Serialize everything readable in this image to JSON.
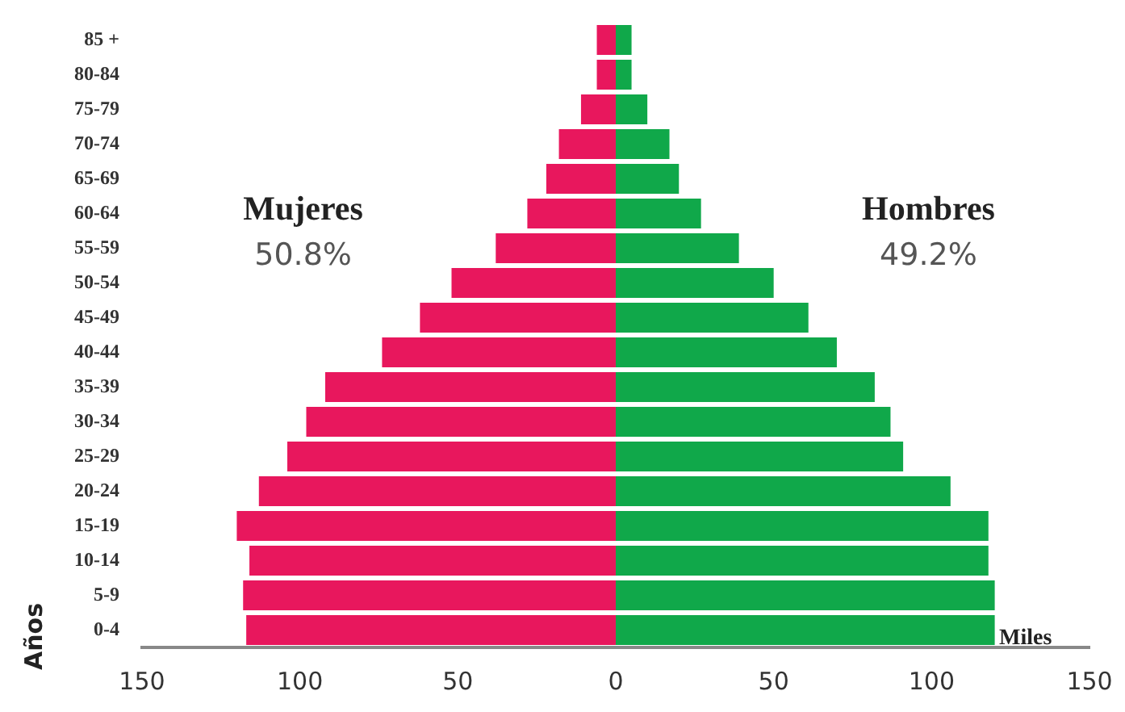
{
  "chart_data": {
    "type": "bar",
    "orientation": "horizontal",
    "stacked": true,
    "categories": [
      "85 +",
      "80-84",
      "75-79",
      "70-74",
      "65-69",
      "60-64",
      "55-59",
      "50-54",
      "45-49",
      "40-44",
      "35-39",
      "30-34",
      "25-29",
      "20-24",
      "15-19",
      "10-14",
      "5-9",
      "0-4"
    ],
    "series": [
      {
        "name": "Mujeres",
        "color": "#e8175d",
        "values": [
          -6,
          -6,
          -11,
          -18,
          -22,
          -28,
          -38,
          -52,
          -62,
          -74,
          -92,
          -98,
          -104,
          -113,
          -120,
          -116,
          -118,
          -117
        ]
      },
      {
        "name": "Hombres",
        "color": "#10a84a",
        "values": [
          5,
          5,
          10,
          17,
          20,
          27,
          39,
          50,
          61,
          70,
          82,
          87,
          91,
          106,
          118,
          118,
          120,
          120
        ]
      }
    ],
    "xlim": [
      -150,
      150
    ],
    "xticks": [
      {
        "value": -150,
        "label": "150"
      },
      {
        "value": -100,
        "label": "100"
      },
      {
        "value": -50,
        "label": "50"
      },
      0,
      50,
      100,
      150
    ],
    "xlabel": "Miles",
    "ylabel": "Años",
    "annotations": [
      "50.8%",
      "49.2%"
    ],
    "grid": false,
    "legend": false
  }
}
